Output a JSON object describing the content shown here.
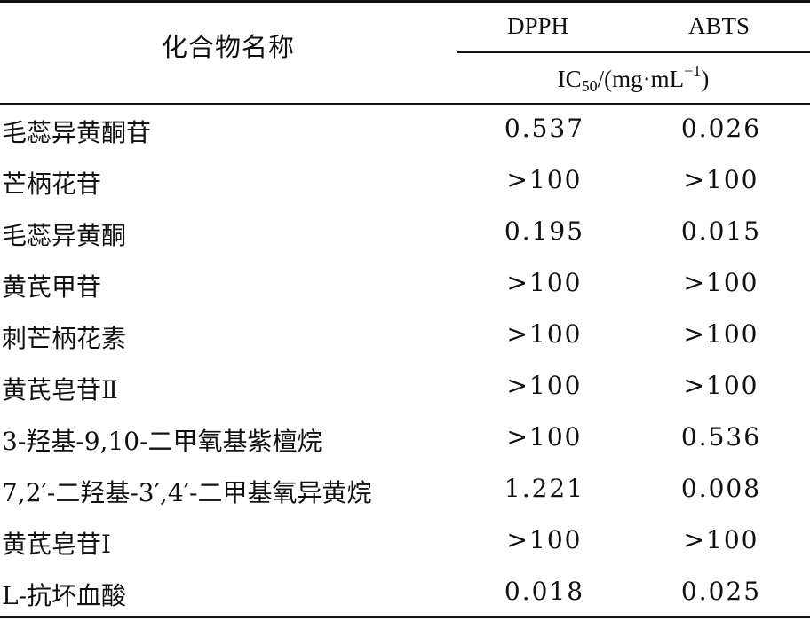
{
  "table": {
    "header": {
      "name_label": "化合物名称",
      "col1": "DPPH",
      "col2": "ABTS",
      "unit_main": "IC",
      "unit_sub": "50",
      "unit_rest": "/(mg·mL",
      "unit_sup": "−1",
      "unit_close": ")"
    },
    "rows": [
      {
        "name": "毛蕊异黄酮苷",
        "dpph": "0.537",
        "abts": "0.026"
      },
      {
        "name": "芒柄花苷",
        "dpph": ">100",
        "abts": ">100"
      },
      {
        "name": "毛蕊异黄酮",
        "dpph": "0.195",
        "abts": "0.015"
      },
      {
        "name": "黄芪甲苷",
        "dpph": ">100",
        "abts": ">100"
      },
      {
        "name": "刺芒柄花素",
        "dpph": ">100",
        "abts": ">100"
      },
      {
        "name": "黄芪皂苷Ⅱ",
        "dpph": ">100",
        "abts": ">100"
      },
      {
        "name": "3-羟基-9,10-二甲氧基紫檀烷",
        "dpph": ">100",
        "abts": "0.536"
      },
      {
        "name": "7,2′-二羟基-3′,4′-二甲基氧异黄烷",
        "dpph": "1.221",
        "abts": "0.008"
      },
      {
        "name": "黄芪皂苷Ⅰ",
        "dpph": ">100",
        "abts": ">100"
      },
      {
        "name": "L-抗坏血酸",
        "dpph": "0.018",
        "abts": "0.025"
      }
    ]
  }
}
